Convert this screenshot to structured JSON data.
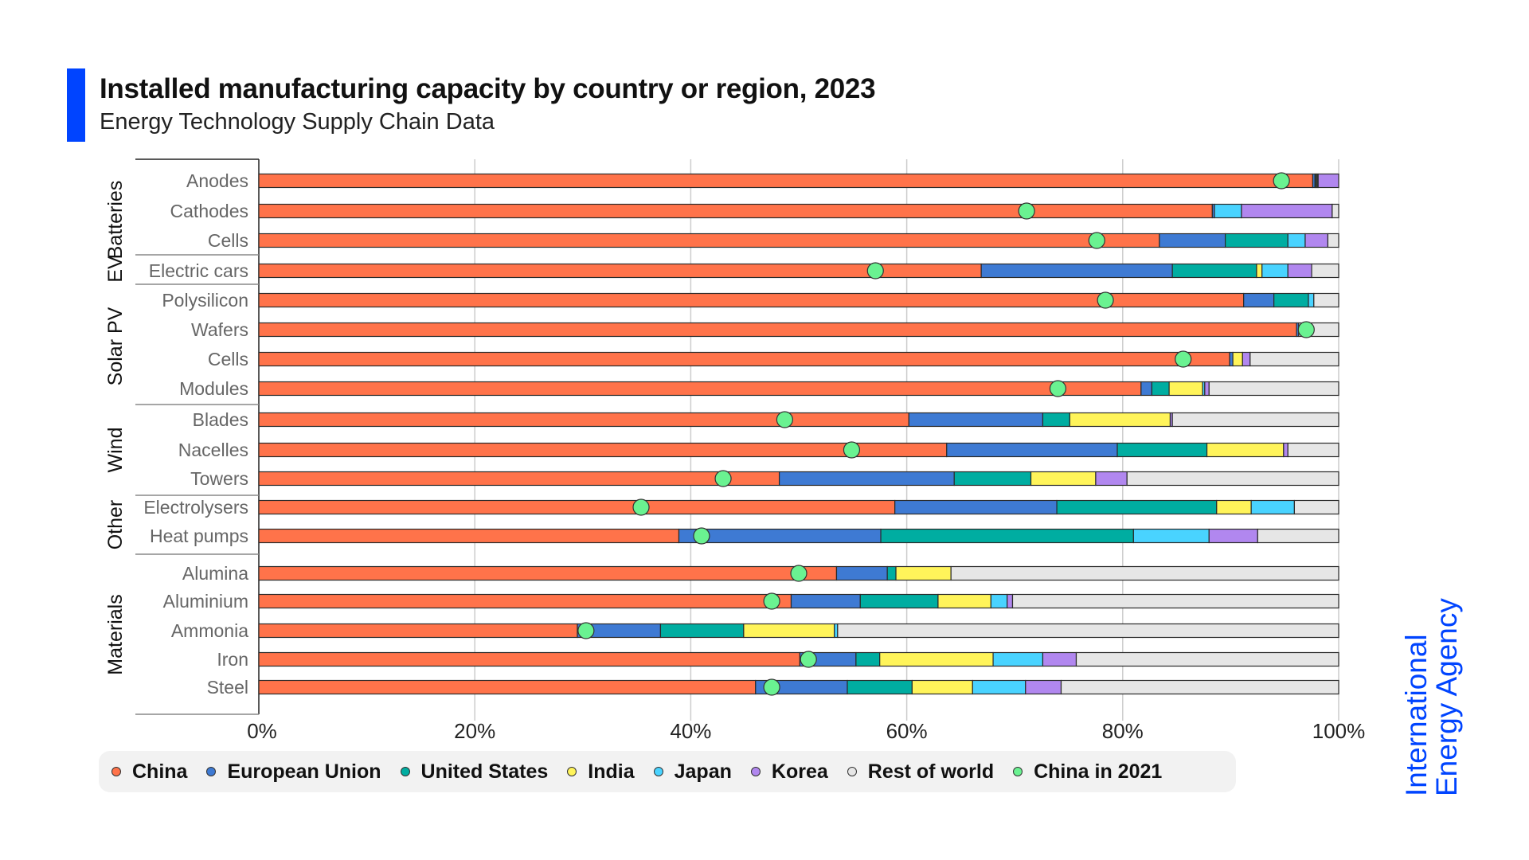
{
  "header": {
    "title": "Installed manufacturing capacity by country or region, 2023",
    "subtitle": "Energy Technology Supply Chain Data"
  },
  "branding": {
    "line1": "International",
    "line2": "Energy Agency",
    "color": "#0044ff"
  },
  "chart_data": {
    "type": "bar",
    "orientation": "horizontal",
    "stacked": true,
    "title": "Installed manufacturing capacity by country or region, 2023",
    "subtitle": "Energy Technology Supply Chain Data",
    "xlabel": "",
    "ylabel": "",
    "xlim": [
      0,
      100
    ],
    "x_ticks": [
      "0%",
      "20%",
      "40%",
      "60%",
      "80%",
      "100%"
    ],
    "x_tick_values": [
      0,
      20,
      40,
      60,
      80,
      100
    ],
    "grid": true,
    "legend_position": "bottom",
    "groups": [
      {
        "name": "EV Batteries",
        "categories": [
          "Anodes",
          "Cathodes",
          "Cells"
        ]
      },
      {
        "name": "EV",
        "categories": [
          "Electric cars"
        ]
      },
      {
        "name": "Solar PV",
        "categories": [
          "Polysilicon",
          "Wafers",
          "Cells",
          "Modules"
        ]
      },
      {
        "name": "Wind",
        "categories": [
          "Blades",
          "Nacelles",
          "Towers"
        ]
      },
      {
        "name": "Other",
        "categories": [
          "Electrolysers",
          "Heat pumps"
        ]
      },
      {
        "name": "Materials",
        "categories": [
          "Alumina",
          "Aluminium",
          "Ammonia",
          "Iron",
          "Steel"
        ]
      }
    ],
    "group_labels": [
      "Batteries",
      "EV",
      "Solar PV",
      "Wind",
      "Other",
      "Materials"
    ],
    "categories": [
      "Anodes",
      "Cathodes",
      "Cells",
      "Electric cars",
      "Polysilicon",
      "Wafers",
      "Cells",
      "Modules",
      "Blades",
      "Nacelles",
      "Towers",
      "Electrolysers",
      "Heat pumps",
      "Alumina",
      "Aluminium",
      "Ammonia",
      "Iron",
      "Steel"
    ],
    "series": [
      {
        "name": "China",
        "color": "#ff734a",
        "values": [
          97.6,
          88.3,
          83.4,
          66.9,
          91.2,
          96.1,
          89.9,
          81.7,
          60.2,
          63.7,
          48.2,
          58.9,
          38.9,
          53.5,
          49.3,
          29.5,
          50.1,
          46.0
        ]
      },
      {
        "name": "European Union",
        "color": "#3e7ad3",
        "values": [
          0.2,
          0.2,
          6.1,
          17.7,
          2.8,
          0.2,
          0.3,
          1.0,
          12.4,
          15.8,
          16.2,
          15.0,
          18.7,
          4.7,
          6.4,
          7.7,
          5.2,
          8.5
        ]
      },
      {
        "name": "United States",
        "color": "#00ada1",
        "values": [
          0.1,
          0.0,
          5.8,
          7.8,
          3.2,
          0.0,
          0.0,
          1.6,
          2.5,
          8.3,
          7.1,
          14.8,
          23.4,
          0.8,
          7.2,
          7.7,
          2.2,
          6.0
        ]
      },
      {
        "name": "India",
        "color": "#fff45a",
        "values": [
          0.1,
          0.0,
          0.0,
          0.5,
          0.0,
          0.0,
          0.9,
          3.1,
          9.3,
          7.1,
          6.0,
          3.2,
          0.0,
          5.1,
          4.9,
          8.4,
          10.5,
          5.6
        ]
      },
      {
        "name": "Japan",
        "color": "#49d3ff",
        "values": [
          0.1,
          2.5,
          1.6,
          2.4,
          0.5,
          0.0,
          0.0,
          0.2,
          0.0,
          0.0,
          0.0,
          4.0,
          7.0,
          0.0,
          1.5,
          0.3,
          4.6,
          4.9
        ]
      },
      {
        "name": "Korea",
        "color": "#b187ef",
        "values": [
          1.9,
          8.4,
          2.1,
          2.2,
          0.0,
          0.0,
          0.7,
          0.4,
          0.2,
          0.4,
          2.9,
          0.0,
          4.5,
          0.0,
          0.5,
          0.0,
          3.1,
          3.3
        ]
      },
      {
        "name": "Rest of world",
        "color": "#e6e6e6",
        "values": [
          0.0,
          0.6,
          1.0,
          2.5,
          2.3,
          3.7,
          8.2,
          12.0,
          15.4,
          4.7,
          19.6,
          4.1,
          7.5,
          35.9,
          30.2,
          46.4,
          24.3,
          25.7
        ]
      }
    ],
    "markers": {
      "name": "China in 2021",
      "color": "#6af291",
      "values": [
        94.7,
        71.1,
        77.6,
        57.1,
        78.4,
        97.0,
        85.6,
        74.0,
        48.7,
        54.9,
        43.0,
        35.4,
        41.0,
        50.0,
        47.5,
        30.3,
        50.9,
        47.5
      ]
    }
  },
  "legend": [
    {
      "label": "China",
      "color": "#ff734a"
    },
    {
      "label": "European Union",
      "color": "#3e7ad3"
    },
    {
      "label": "United States",
      "color": "#00ada1"
    },
    {
      "label": "India",
      "color": "#fff45a"
    },
    {
      "label": "Japan",
      "color": "#49d3ff"
    },
    {
      "label": "Korea",
      "color": "#b187ef"
    },
    {
      "label": "Rest of world",
      "color": "#e6e6e6"
    },
    {
      "label": "China in 2021",
      "color": "#6af291"
    }
  ]
}
